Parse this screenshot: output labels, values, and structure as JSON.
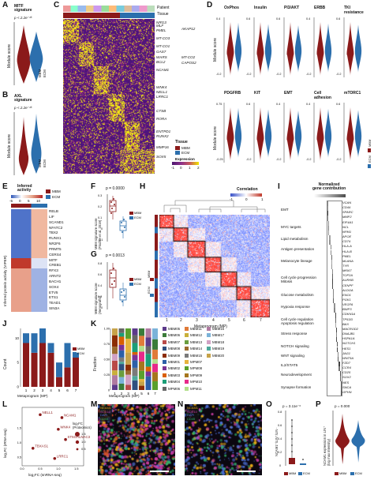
{
  "colors": {
    "mbm": "#8b1a1a",
    "ecm": "#2c6fad",
    "heat_high": "#f2e600",
    "heat_low": "#6a1f8c",
    "corr_pos": "#c0392b",
    "corr_neg": "#3a52c9",
    "grey_dark": "#4d4d4d",
    "grey_light": "#d6d6d6"
  },
  "panel_letters": [
    "A",
    "B",
    "C",
    "D",
    "E",
    "F",
    "G",
    "H",
    "I",
    "J",
    "K",
    "L",
    "M",
    "N",
    "O",
    "P"
  ],
  "panelA": {
    "title": "MITF\nsignature",
    "pval": "p < 2.2e⁻¹⁶",
    "ylabel": "Module score",
    "legend": [
      "MBM",
      "ECM"
    ]
  },
  "panelB": {
    "title": "AXL\nsignature",
    "pval": "p < 2.2e⁻¹⁶",
    "ylabel": "Module score",
    "legend": [
      "MBM",
      "ECM"
    ]
  },
  "panelC": {
    "row_labels": [
      "Patient",
      "Tissue"
    ],
    "genes_left": [
      "NRG3",
      "MLF",
      "PMEL",
      "MT-CO3",
      "MT-CO1",
      "GAS7",
      "WARS",
      "BCL2",
      "NCAM1",
      "WNK4",
      "NELL1",
      "LRRC1",
      "CTSB",
      "RORA",
      "ENTPD1",
      "RUNX2",
      "MMP16",
      "SOX5"
    ],
    "genes_right": [
      "AKAP12",
      "MT-CO2",
      "CAPOS2"
    ],
    "legend_tissue_title": "Tissue",
    "legend_tissue": [
      "MBM",
      "ECM"
    ],
    "legend_expr_title": "Expression",
    "legend_expr_ticks": [
      "-1",
      "0",
      "1",
      "2"
    ]
  },
  "panelD": {
    "ylabel": "Module score",
    "top": [
      {
        "title": "OxPhos",
        "ymin": "-0.2",
        "ymax": "0.4"
      },
      {
        "title": "Insulin",
        "ymin": "-0.2",
        "ymax": "0.6"
      },
      {
        "title": "PI3/AKT",
        "ymin": "-0.2",
        "ymax": "0.6"
      },
      {
        "title": "ERBB",
        "ymin": "-0.2",
        "ymax": "0.4"
      },
      {
        "title": "TKI\nresistance",
        "ymin": "-0.2",
        "ymax": "0.6"
      }
    ],
    "bottom": [
      {
        "title": "PDGFRB",
        "ymin": "-0.25",
        "ymax": "0.75"
      },
      {
        "title": "KIT",
        "ymin": "-0.2",
        "ymax": "0.6"
      },
      {
        "title": "EMT",
        "ymin": "-0.2",
        "ymax": "0.4"
      },
      {
        "title": "Cell\nadhesion",
        "ymin": "-0.2",
        "ymax": "0.4"
      },
      {
        "title": "mTORC1",
        "ymin": "-0.2",
        "ymax": "0.6"
      }
    ],
    "legend": [
      "MBM",
      "ECM"
    ]
  },
  "panelE": {
    "title": "Inferred\nactivity",
    "scale": [
      "-5",
      "0",
      "5",
      "10"
    ],
    "legend": [
      "MBM",
      "ECM"
    ],
    "ylabel": "Inferred protein activity (VIPER)",
    "tfs": [
      "RELB",
      "LIF",
      "SCAND1",
      "NFATC2",
      "TBX2",
      "RUNX1",
      "NR2F6",
      "PRMT5",
      "CERS4",
      "MITF",
      "CREB1",
      "RFX3",
      "ARNT2",
      "BACH1",
      "SOX4",
      "ETV5",
      "ETS1",
      "TEAD1",
      "SIN3A"
    ]
  },
  "panelF": {
    "pval": "p = 0.0000",
    "ylabel": "MBM signature score\n(Fischer et al. 2019)",
    "ticks": [
      "0.3",
      "0.2",
      "0.1",
      "0",
      "-0.1"
    ],
    "legend": [
      "MBM",
      "ECM"
    ]
  },
  "panelG": {
    "pval": "p = 0.0013",
    "ylabel": "MBM signature score\n(Xenografts)",
    "ticks": [
      "0.8",
      "0.6",
      "0.4",
      "0.2",
      "0"
    ],
    "legend": [
      "MBM",
      "ECM"
    ]
  },
  "panelH": {
    "title": "Correlation",
    "scale": [
      "-1",
      "0",
      "1"
    ],
    "xlabel": "Metaprogram (MP)",
    "mp_labels": [
      "1",
      "2",
      "3",
      "4",
      "5",
      "6",
      "7"
    ],
    "legend": [
      "MBM",
      "ECM"
    ]
  },
  "panelI": {
    "title": "Normalized\ngene contribution",
    "programs": [
      "EMT",
      "MYC targets",
      "Lipid metabolism",
      "Antigen presentation",
      "Melanocyte lineage",
      "Cell cycle progression\nMitosis",
      "Glucose metabolism",
      "Hypoxia response",
      "Cell cycle regulation\nApoptosis regulation",
      "Stress response",
      "NOTCH signaling",
      "WNT signaling",
      "IL2/STAT5",
      "Neurodevelopment",
      "Synapse formation"
    ],
    "genes": [
      "VCAN",
      "CD44",
      "SPARC",
      "MMP2",
      "EIF4A1",
      "NCL",
      "NPM1",
      "APOE",
      "CD74",
      "HLA-A",
      "HLA-B",
      "PMEL",
      "MLANA",
      "TYR",
      "MKI67",
      "TOP2A",
      "AURKB",
      "CENPF",
      "ALDOA",
      "ENO1",
      "PGK1",
      "VEGFA",
      "BNIP3",
      "CDKN1A",
      "TP53I3",
      "BAX",
      "MACROD2",
      "DNAJB1",
      "HSPA1A",
      "NOTCH1",
      "HES1",
      "JAG1",
      "WNT5A",
      "FZD7",
      "CCR4",
      "CD25",
      "SOX2",
      "NES",
      "SNCA",
      "GPHN"
    ]
  },
  "panelJ": {
    "ylabel": "Count",
    "ticks": [
      "10",
      "5",
      "0"
    ],
    "xlabel": "Metaprogram (MP)",
    "categories": [
      "1",
      "2",
      "3",
      "4",
      "5",
      "6",
      "7"
    ],
    "mbm": [
      9,
      7,
      9,
      7,
      2,
      4,
      6
    ],
    "ecm": [
      2,
      4,
      3,
      2,
      3,
      5,
      1
    ],
    "legend": [
      "MBM",
      "ECM"
    ]
  },
  "panelK": {
    "ylabel": "Fraction",
    "ticks": [
      "1.00",
      "0.75",
      "0.50",
      "0.25",
      "0"
    ],
    "xlabel": "Metaprogram (MP)",
    "categories": [
      "1",
      "2",
      "3",
      "4",
      "5",
      "6",
      "7"
    ],
    "legend": [
      {
        "name": "MBM05",
        "color": "#5c3a8a"
      },
      {
        "name": "MBM11",
        "color": "#e07b39"
      },
      {
        "name": "MBM16",
        "color": "#b07aa1"
      },
      {
        "name": "MBM06",
        "color": "#3b7c3a"
      },
      {
        "name": "MBM12",
        "color": "#c9b03a"
      },
      {
        "name": "MBM17",
        "color": "#7bb3d9"
      },
      {
        "name": "MBM07",
        "color": "#b94a48"
      },
      {
        "name": "MBM13",
        "color": "#6a9e3f"
      },
      {
        "name": "MBM18",
        "color": "#d1a1c4"
      },
      {
        "name": "MBM08",
        "color": "#2f4f7f"
      },
      {
        "name": "MBM14",
        "color": "#9c6b2e"
      },
      {
        "name": "MBM19",
        "color": "#4ca89b"
      },
      {
        "name": "MBM09",
        "color": "#8c2d04"
      },
      {
        "name": "MBM15",
        "color": "#7a7a7a"
      },
      {
        "name": "MBM20",
        "color": "#c7a349"
      },
      {
        "name": "MBM01",
        "color": "#2c5fa8"
      },
      {
        "name": "MPM07",
        "color": "#e6b33d"
      },
      {
        "name": "MBM02",
        "color": "#7b3294"
      },
      {
        "name": "MPM08",
        "color": "#5aa02c"
      },
      {
        "name": "MBM03",
        "color": "#d95f02"
      },
      {
        "name": "MPM09",
        "color": "#a6761d"
      },
      {
        "name": "MBM04",
        "color": "#1b9e77"
      },
      {
        "name": "MPM10",
        "color": "#e7298a"
      },
      {
        "name": "MPM06",
        "color": "#666666"
      },
      {
        "name": "MPM11",
        "color": "#b2df8a"
      }
    ]
  },
  "panelL": {
    "ylabel": "log₂FC (rRNA-seq)",
    "xlabel": "log₂FC (snRNA-seq)",
    "xticks": [
      "0.0",
      "0.5",
      "1.0",
      "1.5"
    ],
    "yticks": [
      "1.5",
      "1.0",
      "0.5"
    ],
    "legend_title": "log₂FC\n(Proteomics)",
    "legend_vals": [
      "1.5",
      "1.0",
      "0.5"
    ],
    "points": [
      {
        "label": "NELL1",
        "x": 0.5,
        "y": 1.95
      },
      {
        "label": "NCAM1",
        "x": 1.1,
        "y": 1.85
      },
      {
        "label": "WNK4",
        "x": 1.0,
        "y": 1.45
      },
      {
        "label": "ST6GALNAC3",
        "x": 1.2,
        "y": 1.1
      },
      {
        "label": "TBXAS1",
        "x": 0.3,
        "y": 0.8
      },
      {
        "label": "LRRC1",
        "x": 0.9,
        "y": 0.45
      }
    ]
  },
  "panelM": {
    "labels": [
      "NCAM1",
      "SOX10",
      "DAPI",
      "CD45"
    ],
    "colors": [
      "#e6a817",
      "#cf3ea7",
      "#4c6fd6",
      "#34b36a"
    ]
  },
  "panelN": {
    "labels": [
      "NCAM1",
      "SOX10",
      "DAPI",
      "CD45"
    ],
    "colors": [
      "#e6a817",
      "#cf3ea7",
      "#4c6fd6",
      "#34b36a"
    ]
  },
  "panelO": {
    "pval": "p = 3.11e⁻⁶",
    "ylabel": "NCAM1⁺/LIN⁺/LIN⁻",
    "ticks": [
      "0.8",
      "0.6",
      "0.4",
      "0.2",
      "0"
    ],
    "legend": [
      "MBM",
      "ECM"
    ]
  },
  "panelP": {
    "pval": "p = 0.000",
    "ylabel": "NCAM1 expression in LIN⁺\n(log max intensity)",
    "legend": [
      "MBM",
      "ECM"
    ]
  }
}
